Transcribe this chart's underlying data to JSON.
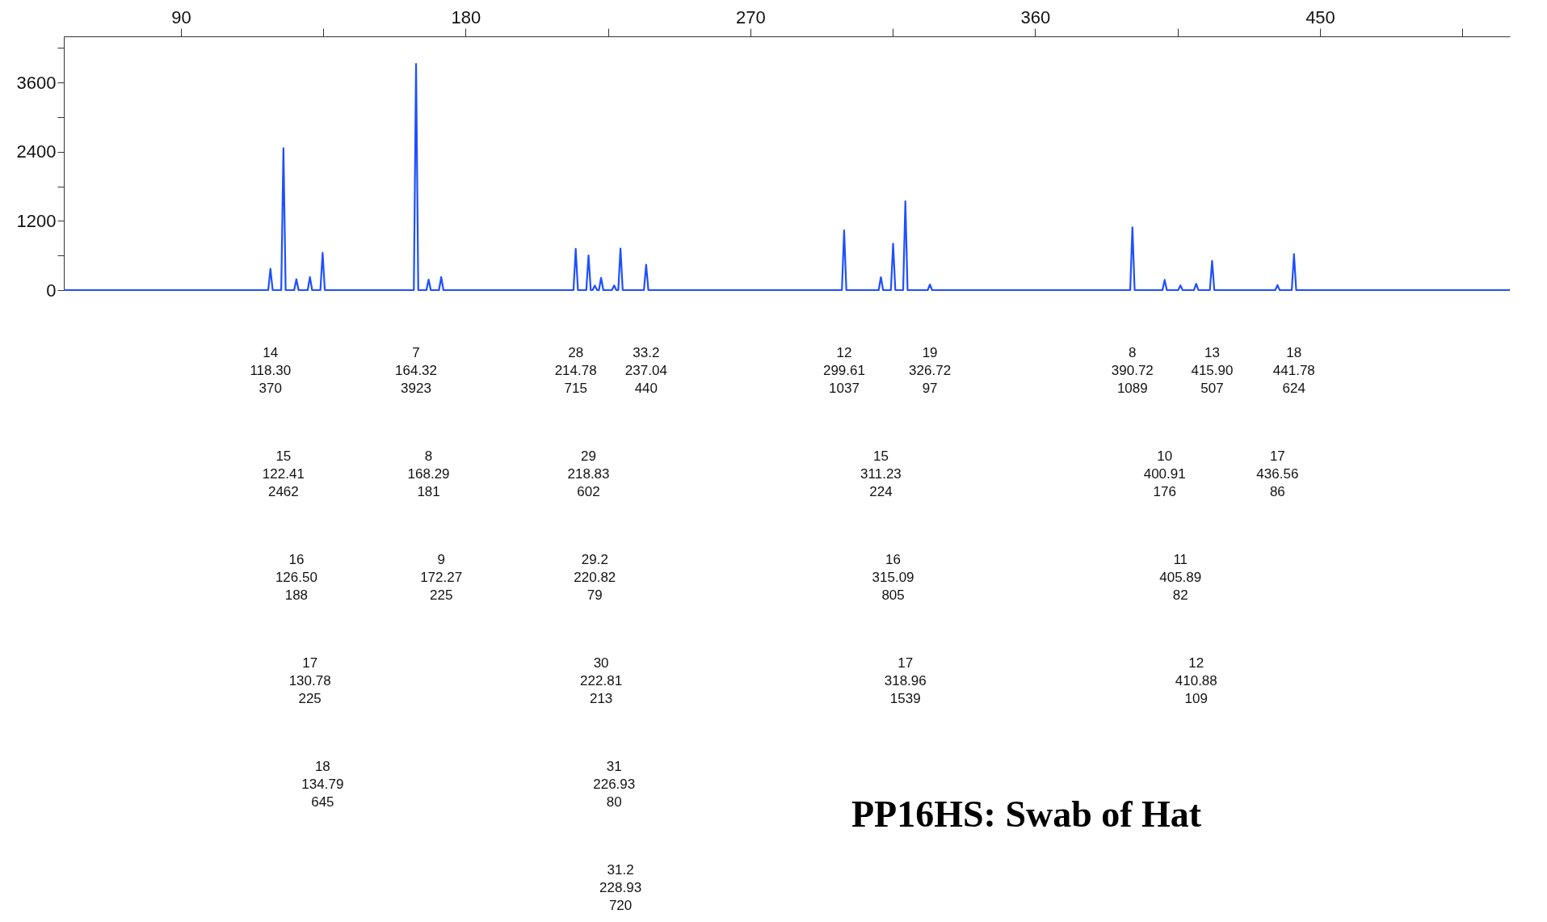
{
  "chart_data": {
    "type": "line",
    "title": "PP16HS:  Swab of Hat",
    "x": [
      53,
      117.6,
      118.3,
      119.0,
      121.71,
      122.41,
      123.11,
      125.8,
      126.5,
      127.2,
      130.08,
      130.78,
      131.48,
      134.09,
      134.79,
      135.49,
      163.62,
      164.32,
      165.02,
      167.59,
      168.29,
      168.99,
      171.57,
      172.27,
      172.97,
      214.08,
      214.78,
      215.48,
      218.13,
      218.83,
      219.53,
      220.12,
      220.82,
      221.52,
      222.11,
      222.81,
      223.51,
      226.23,
      226.93,
      227.63,
      228.23,
      228.93,
      229.63,
      236.34,
      237.04,
      237.74,
      298.91,
      299.61,
      300.31,
      310.53,
      311.23,
      311.93,
      314.39,
      315.09,
      315.79,
      318.26,
      318.96,
      319.66,
      326.02,
      326.72,
      327.42,
      390.02,
      390.72,
      391.42,
      400.21,
      400.91,
      401.61,
      405.19,
      405.89,
      406.59,
      410.18,
      410.88,
      411.58,
      415.2,
      415.9,
      416.6,
      435.86,
      436.56,
      437.26,
      441.08,
      441.78,
      442.48,
      510
    ],
    "series": [
      {
        "color": "#1f4fff",
        "values": [
          0,
          0,
          370,
          0,
          0,
          2462,
          0,
          0,
          188,
          0,
          0,
          225,
          0,
          0,
          645,
          0,
          0,
          3923,
          0,
          0,
          181,
          0,
          0,
          225,
          0,
          0,
          715,
          0,
          0,
          602,
          0,
          0,
          79,
          0,
          0,
          213,
          0,
          0,
          80,
          0,
          0,
          720,
          0,
          0,
          440,
          0,
          0,
          1037,
          0,
          0,
          224,
          0,
          0,
          805,
          0,
          0,
          1539,
          0,
          0,
          97,
          0,
          0,
          1089,
          0,
          0,
          176,
          0,
          0,
          82,
          0,
          0,
          109,
          0,
          0,
          507,
          0,
          0,
          86,
          0,
          0,
          624,
          0,
          0
        ]
      }
    ],
    "xlim": [
      53,
      510
    ],
    "xticks": [
      90,
      {
        "value": 135,
        "label": null
      },
      180,
      {
        "value": 225,
        "label": null
      },
      270,
      {
        "value": 315,
        "label": null
      },
      360,
      {
        "value": 405,
        "label": null
      },
      450,
      {
        "value": 495,
        "label": null
      }
    ],
    "ylim": [
      0,
      4400
    ],
    "yticks": [
      0,
      {
        "value": 600,
        "label": null
      },
      1200,
      {
        "value": 1800,
        "label": null
      },
      2400,
      {
        "value": 3000,
        "label": null
      },
      3600,
      {
        "value": 4200,
        "label": null
      }
    ],
    "grid": false,
    "marker": "none",
    "line_style": "solid",
    "annotations": [
      "14\n118.30\n370",
      "15\n122.41\n2462",
      "16\n126.50\n188",
      "17\n130.78\n225",
      "18\n134.79\n645",
      "7\n164.32\n3923",
      "8\n168.29\n181",
      "9\n172.27\n225",
      "28\n214.78\n715",
      "29\n218.83\n602",
      "29.2\n220.82\n79",
      "30\n222.81\n213",
      "31\n226.93\n80",
      "31.2\n228.93\n720",
      "33.2\n237.04\n440",
      "12\n299.61\n1037",
      "15\n311.23\n224",
      "16\n315.09\n805",
      "17\n318.96\n1539",
      "19\n326.72\n97",
      "8\n390.72\n1089",
      "10\n400.91\n176",
      "11\n405.89\n82",
      "12\n410.88\n109",
      "13\n415.90\n507",
      "17\n436.56\n86",
      "18\n441.78\n624"
    ]
  }
}
